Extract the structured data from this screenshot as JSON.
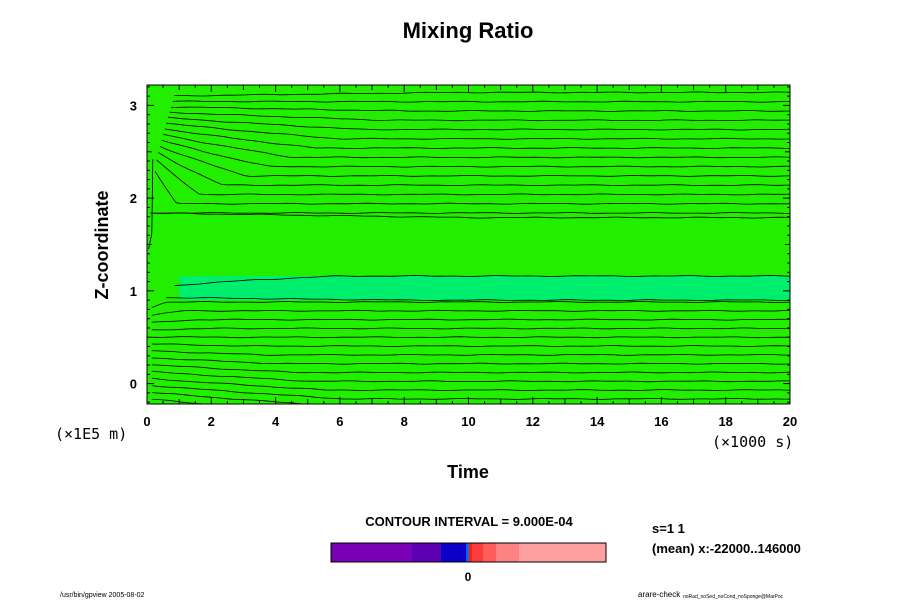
{
  "chart_data": {
    "type": "contour",
    "title": "Mixing Ratio",
    "xlabel": "Time",
    "ylabel": "Z-coordinate",
    "x_unit": "(×1000 s)",
    "y_unit": "(×1E5 m)",
    "xlim": [
      0,
      20
    ],
    "ylim": [
      -0.22,
      3.22
    ],
    "x_ticks": [
      0,
      2,
      4,
      6,
      8,
      10,
      12,
      14,
      16,
      18,
      20
    ],
    "y_ticks": [
      0,
      1,
      2,
      3
    ],
    "contour_interval_text": "CONTOUR INTERVAL = 9.000E-04",
    "fill_color": "#22ee00",
    "core_fill_color": "#00ee6e",
    "line_color": "#000000",
    "colorbar": {
      "segments": [
        {
          "color": "#7a00b6",
          "weight": 81
        },
        {
          "color": "#5c00b4",
          "weight": 29
        },
        {
          "color": "#0a00c8",
          "weight": 25
        },
        {
          "color": "#1060ff",
          "weight": 3
        },
        {
          "color": "#ff2400",
          "weight": 3
        },
        {
          "color": "#ff3c3c",
          "weight": 11
        },
        {
          "color": "#ff5c5c",
          "weight": 13
        },
        {
          "color": "#ff8282",
          "weight": 23
        },
        {
          "color": "#ffa0a0",
          "weight": 87
        }
      ],
      "zero_label": "0",
      "zero_fraction": 0.498
    }
  },
  "annotations": {
    "slice": "s=1 1",
    "mean": "(mean) x:-22000..146000",
    "footer_left": "/usr/bin/gpview 2005-08-02",
    "footer_right_main": "arare-check",
    "footer_right_small": "noRad_noSed_noCond_noSponge@MarPoc"
  }
}
